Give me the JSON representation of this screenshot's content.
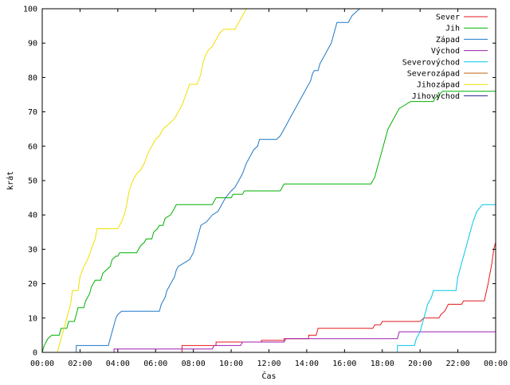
{
  "chart_data": {
    "type": "line",
    "title": "",
    "xlabel": "Čas",
    "ylabel": "krát",
    "xlim": [
      0,
      24
    ],
    "ylim": [
      0,
      100
    ],
    "x_ticks": [
      "00:00",
      "02:00",
      "04:00",
      "06:00",
      "08:00",
      "10:00",
      "12:00",
      "14:00",
      "16:00",
      "18:00",
      "20:00",
      "22:00",
      "00:00"
    ],
    "y_ticks": [
      0,
      10,
      20,
      30,
      40,
      50,
      60,
      70,
      80,
      90,
      100
    ],
    "grid": false,
    "legend_position": "top-right",
    "series": [
      {
        "name": "Sever",
        "color": "#e41a1c",
        "points": [
          [
            0,
            0
          ],
          [
            7.4,
            0
          ],
          [
            7.4,
            2
          ],
          [
            9.2,
            2
          ],
          [
            9.2,
            3
          ],
          [
            11.6,
            3
          ],
          [
            11.6,
            3.5
          ],
          [
            12.8,
            3.5
          ],
          [
            12.8,
            4
          ],
          [
            14.1,
            4
          ],
          [
            14.1,
            5
          ],
          [
            14.5,
            5
          ],
          [
            14.6,
            7
          ],
          [
            17.5,
            7
          ],
          [
            17.6,
            8
          ],
          [
            17.9,
            8
          ],
          [
            18.0,
            9
          ],
          [
            20.0,
            9
          ],
          [
            20.2,
            10
          ],
          [
            21.0,
            10
          ],
          [
            21.1,
            11
          ],
          [
            21.3,
            12
          ],
          [
            21.5,
            14
          ],
          [
            22.2,
            14
          ],
          [
            22.3,
            15
          ],
          [
            23.4,
            15
          ],
          [
            23.6,
            20
          ],
          [
            23.8,
            26
          ],
          [
            23.9,
            30
          ],
          [
            24,
            32
          ]
        ]
      },
      {
        "name": "Jih",
        "color": "#00b000",
        "points": [
          [
            0,
            0
          ],
          [
            0.1,
            2
          ],
          [
            0.3,
            4
          ],
          [
            0.5,
            5
          ],
          [
            0.9,
            5
          ],
          [
            1.0,
            7
          ],
          [
            1.3,
            7
          ],
          [
            1.4,
            9
          ],
          [
            1.7,
            9
          ],
          [
            1.8,
            11
          ],
          [
            1.9,
            13
          ],
          [
            2.2,
            13
          ],
          [
            2.3,
            15
          ],
          [
            2.5,
            17
          ],
          [
            2.6,
            19
          ],
          [
            2.8,
            21
          ],
          [
            3.1,
            21
          ],
          [
            3.2,
            23
          ],
          [
            3.4,
            24
          ],
          [
            3.6,
            25
          ],
          [
            3.7,
            27
          ],
          [
            3.9,
            28
          ],
          [
            4.0,
            28
          ],
          [
            4.1,
            29
          ],
          [
            4.5,
            29
          ],
          [
            4.6,
            29
          ],
          [
            5.0,
            29
          ],
          [
            5.2,
            31
          ],
          [
            5.4,
            32
          ],
          [
            5.5,
            33
          ],
          [
            5.8,
            33
          ],
          [
            5.9,
            35
          ],
          [
            6.1,
            36
          ],
          [
            6.2,
            37
          ],
          [
            6.4,
            37
          ],
          [
            6.5,
            39
          ],
          [
            6.8,
            40
          ],
          [
            6.9,
            41
          ],
          [
            7.0,
            42
          ],
          [
            7.1,
            43
          ],
          [
            9.0,
            43
          ],
          [
            9.1,
            44
          ],
          [
            9.2,
            45
          ],
          [
            10.0,
            45
          ],
          [
            10.1,
            46
          ],
          [
            10.6,
            46
          ],
          [
            10.7,
            47
          ],
          [
            12.6,
            47
          ],
          [
            12.7,
            48
          ],
          [
            12.8,
            49
          ],
          [
            17.4,
            49
          ],
          [
            17.6,
            51
          ],
          [
            17.7,
            53
          ],
          [
            17.8,
            55
          ],
          [
            17.9,
            57
          ],
          [
            18.0,
            59
          ],
          [
            18.1,
            61
          ],
          [
            18.2,
            63
          ],
          [
            18.3,
            65
          ],
          [
            18.5,
            67
          ],
          [
            18.7,
            69
          ],
          [
            18.9,
            71
          ],
          [
            19.2,
            72
          ],
          [
            19.5,
            73
          ],
          [
            20.7,
            73
          ],
          [
            20.8,
            74
          ],
          [
            21.0,
            75
          ],
          [
            21.2,
            76
          ],
          [
            24,
            76
          ]
        ]
      },
      {
        "name": "Západ",
        "color": "#1f78c8",
        "points": [
          [
            1.8,
            0
          ],
          [
            1.8,
            2
          ],
          [
            3.5,
            2
          ],
          [
            3.6,
            4
          ],
          [
            3.7,
            6
          ],
          [
            3.8,
            8
          ],
          [
            3.9,
            10
          ],
          [
            4.0,
            11
          ],
          [
            4.2,
            12
          ],
          [
            6.2,
            12
          ],
          [
            6.3,
            14
          ],
          [
            6.5,
            16
          ],
          [
            6.6,
            18
          ],
          [
            6.8,
            20
          ],
          [
            7.0,
            22
          ],
          [
            7.1,
            24
          ],
          [
            7.2,
            25
          ],
          [
            7.5,
            26
          ],
          [
            7.8,
            27
          ],
          [
            8.0,
            29
          ],
          [
            8.1,
            31
          ],
          [
            8.2,
            33
          ],
          [
            8.3,
            35
          ],
          [
            8.4,
            37
          ],
          [
            8.7,
            38
          ],
          [
            9.0,
            40
          ],
          [
            9.3,
            41
          ],
          [
            9.5,
            43
          ],
          [
            9.7,
            45
          ],
          [
            10.0,
            47
          ],
          [
            10.2,
            48
          ],
          [
            10.4,
            50
          ],
          [
            10.6,
            52
          ],
          [
            10.8,
            55
          ],
          [
            11.0,
            57
          ],
          [
            11.2,
            59
          ],
          [
            11.4,
            60
          ],
          [
            11.5,
            62
          ],
          [
            12.4,
            62
          ],
          [
            12.6,
            63
          ],
          [
            12.8,
            65
          ],
          [
            13.0,
            67
          ],
          [
            13.2,
            69
          ],
          [
            13.4,
            71
          ],
          [
            13.6,
            73
          ],
          [
            13.8,
            75
          ],
          [
            14.0,
            77
          ],
          [
            14.2,
            79
          ],
          [
            14.3,
            81
          ],
          [
            14.4,
            82
          ],
          [
            14.6,
            82
          ],
          [
            14.7,
            84
          ],
          [
            14.9,
            86
          ],
          [
            15.1,
            88
          ],
          [
            15.3,
            90
          ],
          [
            15.4,
            92
          ],
          [
            15.5,
            94
          ],
          [
            15.6,
            96
          ],
          [
            16.2,
            96
          ],
          [
            16.4,
            98
          ],
          [
            16.6,
            99
          ],
          [
            16.8,
            100
          ]
        ]
      },
      {
        "name": "Východ",
        "color": "#9b1fb0",
        "points": [
          [
            3.8,
            0
          ],
          [
            3.8,
            1
          ],
          [
            9.0,
            1
          ],
          [
            9.1,
            2
          ],
          [
            10.5,
            2
          ],
          [
            10.6,
            3
          ],
          [
            12.8,
            3
          ],
          [
            12.9,
            4
          ],
          [
            18.8,
            4
          ],
          [
            18.9,
            6
          ],
          [
            24,
            6
          ]
        ]
      },
      {
        "name": "Severovýchod",
        "color": "#00c8e8",
        "points": [
          [
            18.8,
            0
          ],
          [
            18.8,
            2
          ],
          [
            19.7,
            2
          ],
          [
            19.8,
            4
          ],
          [
            20.0,
            6
          ],
          [
            20.1,
            8
          ],
          [
            20.2,
            10
          ],
          [
            20.3,
            12
          ],
          [
            20.4,
            14
          ],
          [
            20.6,
            16
          ],
          [
            20.7,
            18
          ],
          [
            21.9,
            18
          ],
          [
            22.0,
            22
          ],
          [
            22.2,
            26
          ],
          [
            22.4,
            30
          ],
          [
            22.6,
            34
          ],
          [
            22.8,
            38
          ],
          [
            23.0,
            41
          ],
          [
            23.3,
            43
          ],
          [
            24,
            43
          ]
        ]
      },
      {
        "name": "Severozápad",
        "color": "#c0601a",
        "points": []
      },
      {
        "name": "Jihozápad",
        "color": "#f0e000",
        "points": [
          [
            0.8,
            0
          ],
          [
            0.9,
            2
          ],
          [
            1.1,
            6
          ],
          [
            1.3,
            10
          ],
          [
            1.5,
            14
          ],
          [
            1.6,
            18
          ],
          [
            1.9,
            18
          ],
          [
            2.0,
            22
          ],
          [
            2.2,
            25
          ],
          [
            2.4,
            27
          ],
          [
            2.6,
            30
          ],
          [
            2.8,
            33
          ],
          [
            2.9,
            36
          ],
          [
            4.0,
            36
          ],
          [
            4.2,
            38
          ],
          [
            4.4,
            41
          ],
          [
            4.5,
            44
          ],
          [
            4.6,
            47
          ],
          [
            4.8,
            50
          ],
          [
            5.0,
            52
          ],
          [
            5.2,
            53
          ],
          [
            5.4,
            55
          ],
          [
            5.6,
            58
          ],
          [
            5.8,
            60
          ],
          [
            6.0,
            62
          ],
          [
            6.2,
            63
          ],
          [
            6.4,
            65
          ],
          [
            6.6,
            66
          ],
          [
            6.8,
            67
          ],
          [
            7.0,
            68
          ],
          [
            7.2,
            70
          ],
          [
            7.4,
            72
          ],
          [
            7.6,
            75
          ],
          [
            7.8,
            78
          ],
          [
            8.2,
            78
          ],
          [
            8.4,
            81
          ],
          [
            8.5,
            84
          ],
          [
            8.6,
            86
          ],
          [
            8.8,
            88
          ],
          [
            9.0,
            89
          ],
          [
            9.2,
            91
          ],
          [
            9.4,
            93
          ],
          [
            9.6,
            94
          ],
          [
            10.2,
            94
          ],
          [
            10.4,
            96
          ],
          [
            10.6,
            98
          ],
          [
            10.8,
            100
          ]
        ]
      },
      {
        "name": "Jihovýchod",
        "color": "#2b1a8c",
        "points": []
      }
    ]
  }
}
